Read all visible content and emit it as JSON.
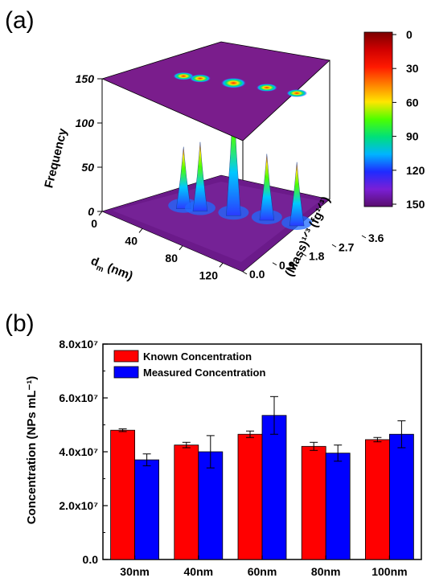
{
  "panels": {
    "a_label": "(a)",
    "b_label": "(b)"
  },
  "chart_data": [
    {
      "type": "heatmap",
      "panel": "(a)",
      "view": "3D surface with projected contour map on top plane",
      "axes": {
        "z": {
          "label": "Frequency",
          "ticks": [
            "0",
            "50",
            "100",
            "150"
          ],
          "range": [
            0,
            150
          ]
        },
        "x": {
          "label_main": "d",
          "label_sub": "m",
          "label_unit": " (nm)",
          "ticks": [
            "0",
            "40",
            "80",
            "120"
          ],
          "range": [
            0,
            140
          ]
        },
        "y": {
          "label": "(Mass)¹ᐟ³ (fg¹ᐟ³)",
          "ticks": [
            "0.0",
            "0.9",
            "1.8",
            "2.7",
            "3.6"
          ],
          "range": [
            0,
            3.6
          ]
        }
      },
      "peaks": [
        {
          "dm": 30,
          "mass13": 1.55,
          "frequency": 70
        },
        {
          "dm": 40,
          "mass13": 1.75,
          "frequency": 78
        },
        {
          "dm": 60,
          "mass13": 2.15,
          "frequency": 140
        },
        {
          "dm": 80,
          "mass13": 2.55,
          "frequency": 75
        },
        {
          "dm": 100,
          "mass13": 2.85,
          "frequency": 72
        }
      ],
      "colorbar": {
        "ticks": [
          "0",
          "30",
          "60",
          "90",
          "120",
          "150"
        ],
        "colors": [
          "#5a0e6e",
          "#7a1fd6",
          "#1f2bff",
          "#00b4ff",
          "#00e07a",
          "#4cff00",
          "#ffe600",
          "#ff8000",
          "#ff1a00",
          "#d00000",
          "#7a0000"
        ]
      }
    },
    {
      "type": "bar",
      "panel": "(b)",
      "categories": [
        "30nm",
        "40nm",
        "60nm",
        "80nm",
        "100nm"
      ],
      "series": [
        {
          "name": "Known Concentration",
          "color": "#ff0000",
          "values": [
            48000000.0,
            42500000.0,
            46500000.0,
            42000000.0,
            44500000.0
          ],
          "errors": [
            500000.0,
            1000000.0,
            1200000.0,
            1500000.0,
            800000.0
          ]
        },
        {
          "name": "Measured Concentration",
          "color": "#0000ff",
          "values": [
            37000000.0,
            40000000.0,
            53500000.0,
            39500000.0,
            46500000.0
          ],
          "errors": [
            2200000.0,
            6000000.0,
            7000000.0,
            3000000.0,
            5000000.0
          ]
        }
      ],
      "ylabel": "Concentration (NPs mL⁻¹)",
      "ylim": [
        0,
        80000000.0
      ],
      "yticks": [
        "0.0",
        "2.0x10⁷",
        "4.0x10⁷",
        "6.0x10⁷",
        "8.0x10⁷"
      ],
      "legend_position": "top-left"
    }
  ]
}
